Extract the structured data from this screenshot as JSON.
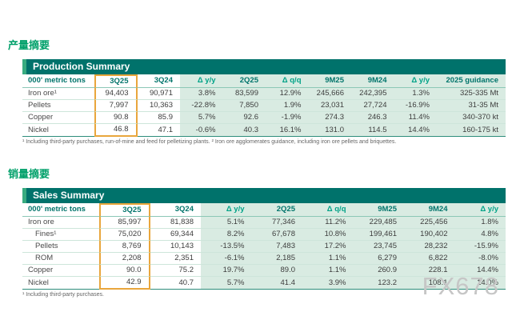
{
  "page": {
    "production_heading_cn": "产量摘要",
    "sales_heading_cn": "销量摘要",
    "watermark": "FX678"
  },
  "production": {
    "title": "Production Summary",
    "columns": [
      "000' metric tons",
      "3Q25",
      "3Q24",
      "Δ y/y",
      "2Q25",
      "Δ q/q",
      "9M25",
      "9M24",
      "Δ y/y",
      "2025 guidance"
    ],
    "rows": [
      {
        "label": "Iron ore¹",
        "indent": false,
        "values": [
          "94,403",
          "90,971",
          "3.8%",
          "83,599",
          "12.9%",
          "245,666",
          "242,395",
          "1.3%",
          "325-335 Mt"
        ]
      },
      {
        "label": "Pellets",
        "indent": false,
        "values": [
          "7,997",
          "10,363",
          "-22.8%",
          "7,850",
          "1.9%",
          "23,031",
          "27,724",
          "-16.9%",
          "31-35 Mt"
        ]
      },
      {
        "label": "Copper",
        "indent": false,
        "values": [
          "90.8",
          "85.9",
          "5.7%",
          "92.6",
          "-1.9%",
          "274.3",
          "246.3",
          "11.4%",
          "340-370 kt"
        ]
      },
      {
        "label": "Nickel",
        "indent": false,
        "values": [
          "46.8",
          "47.1",
          "-0.6%",
          "40.3",
          "16.1%",
          "131.0",
          "114.5",
          "14.4%",
          "160-175 kt"
        ]
      }
    ],
    "footnote": "¹ Including third-party purchases, run-of-mine and feed for pelletizing plants. ² Iron ore agglomerates guidance, including iron ore pellets and briquettes."
  },
  "sales": {
    "title": "Sales Summary",
    "columns": [
      "000' metric tons",
      "3Q25",
      "3Q24",
      "Δ y/y",
      "2Q25",
      "Δ q/q",
      "9M25",
      "9M24",
      "Δ y/y"
    ],
    "rows": [
      {
        "label": "Iron ore",
        "indent": false,
        "values": [
          "85,997",
          "81,838",
          "5.1%",
          "77,346",
          "11.2%",
          "229,485",
          "225,456",
          "1.8%"
        ]
      },
      {
        "label": "Fines¹",
        "indent": true,
        "values": [
          "75,020",
          "69,344",
          "8.2%",
          "67,678",
          "10.8%",
          "199,461",
          "190,402",
          "4.8%"
        ]
      },
      {
        "label": "Pellets",
        "indent": true,
        "values": [
          "8,769",
          "10,143",
          "-13.5%",
          "7,483",
          "17.2%",
          "23,745",
          "28,232",
          "-15.9%"
        ]
      },
      {
        "label": "ROM",
        "indent": true,
        "values": [
          "2,208",
          "2,351",
          "-6.1%",
          "2,185",
          "1.1%",
          "6,279",
          "6,822",
          "-8.0%"
        ]
      },
      {
        "label": "Copper",
        "indent": false,
        "values": [
          "90.0",
          "75.2",
          "19.7%",
          "89.0",
          "1.1%",
          "260.9",
          "228.1",
          "14.4%"
        ]
      },
      {
        "label": "Nickel",
        "indent": false,
        "values": [
          "42.9",
          "40.7",
          "5.7%",
          "41.4",
          "3.9%",
          "123.2",
          "108.1",
          "14.0%"
        ]
      }
    ],
    "footnote": "¹ Including third-party purchases."
  }
}
